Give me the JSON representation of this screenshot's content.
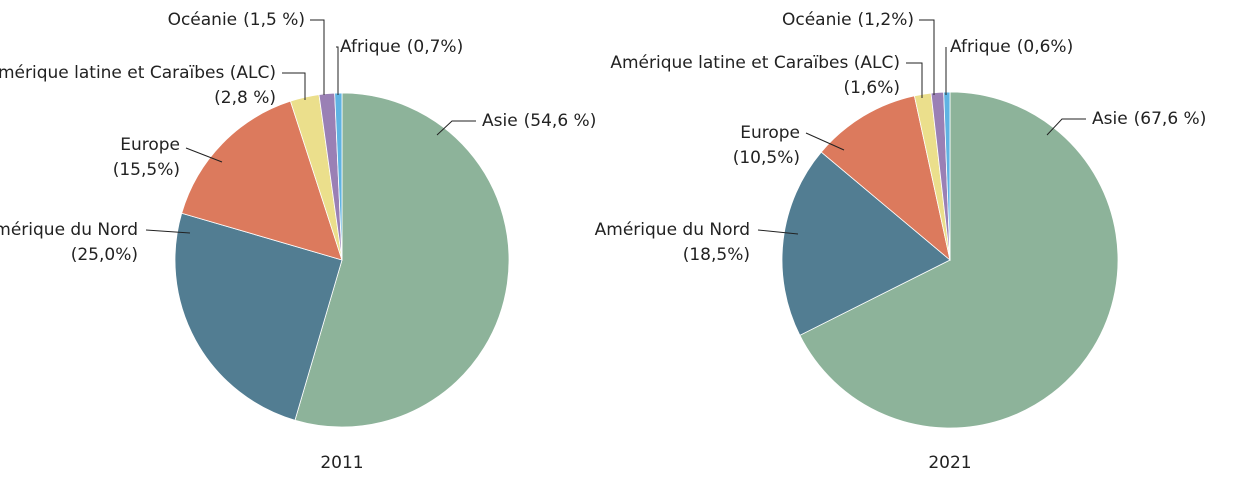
{
  "chart_data": [
    {
      "type": "pie",
      "title": "2011",
      "categories": [
        "Asie",
        "Amérique du Nord",
        "Europe",
        "Amérique latine et Caraïbes (ALC)",
        "Océanie",
        "Afrique"
      ],
      "values": [
        54.6,
        25.0,
        15.5,
        2.8,
        1.5,
        0.7
      ],
      "value_labels": [
        "(54,6 %)",
        "(25,0%)",
        "(15,5%)",
        "(2,8 %)",
        "(1,5 %)",
        "(0,7%)"
      ],
      "colors": [
        "#8db39a",
        "#527d92",
        "#dc7a5d",
        "#ebdf8c",
        "#9a80b5",
        "#5fb3e3"
      ]
    },
    {
      "type": "pie",
      "title": "2021",
      "categories": [
        "Asie",
        "Amérique du Nord",
        "Europe",
        "Amérique latine et Caraïbes (ALC)",
        "Océanie",
        "Afrique"
      ],
      "values": [
        67.6,
        18.5,
        10.5,
        1.6,
        1.2,
        0.6
      ],
      "value_labels": [
        "(67,6 %)",
        "(18,5%)",
        "(10,5%)",
        "(1,6%)",
        "(1,2%)",
        "(0,6%)"
      ],
      "colors": [
        "#8db39a",
        "#527d92",
        "#dc7a5d",
        "#ebdf8c",
        "#9a80b5",
        "#5fb3e3"
      ]
    }
  ]
}
